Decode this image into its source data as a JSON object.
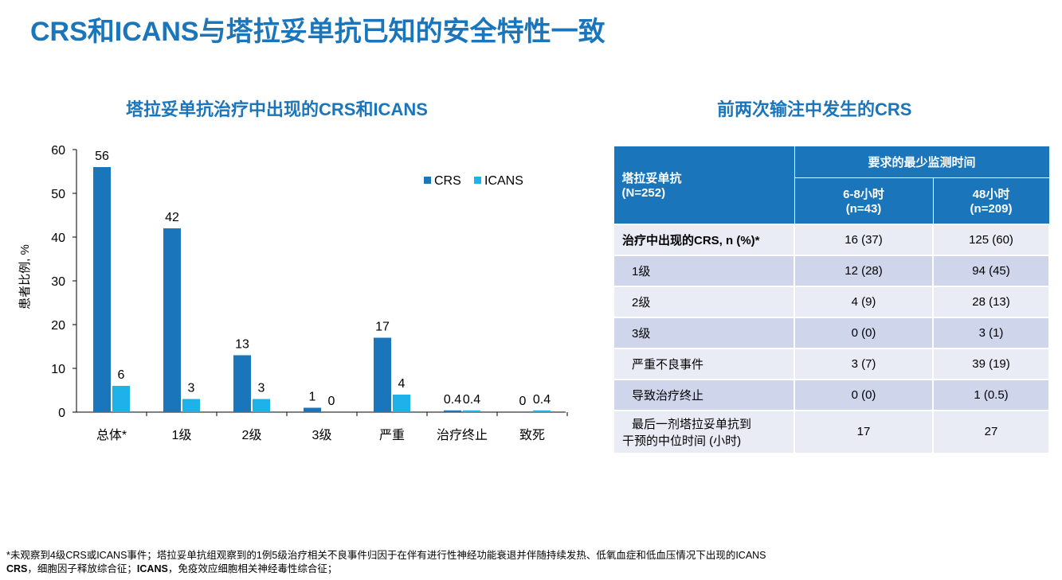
{
  "title": "CRS和ICANS与塔拉妥单抗已知的安全特性一致",
  "chart_subtitle": "塔拉妥单抗治疗中出现的CRS和ICANS",
  "table_subtitle": "前两次输注中发生的CRS",
  "colors": {
    "accent": "#1a75bb",
    "crs": "#1a75bb",
    "icans": "#1fb1ea",
    "row_light": "#e9ebf5",
    "row_dark": "#cfd5ea"
  },
  "chart_data": {
    "type": "bar",
    "title": "塔拉妥单抗治疗中出现的CRS和ICANS",
    "xlabel": "",
    "ylabel": "患者比例, %",
    "ylim": [
      0,
      60
    ],
    "yticks": [
      0,
      10,
      20,
      30,
      40,
      50,
      60
    ],
    "legend_position": "top-right",
    "categories": [
      "总体*",
      "1级",
      "2级",
      "3级",
      "严重",
      "治疗终止",
      "致死"
    ],
    "series": [
      {
        "name": "CRS",
        "values": [
          56,
          42,
          13,
          1,
          17,
          0.4,
          0
        ],
        "labels": [
          "56",
          "42",
          "13",
          "1",
          "17",
          "0.4",
          "0"
        ]
      },
      {
        "name": "ICANS",
        "values": [
          6,
          3,
          3,
          0,
          4,
          0.4,
          0.4
        ],
        "labels": [
          "6",
          "3",
          "3",
          "0",
          "4",
          "0.4",
          "0.4"
        ]
      }
    ]
  },
  "table": {
    "corner_line1": "塔拉妥单抗",
    "corner_line2": "(N=252)",
    "group_header": "要求的最少监测时间",
    "col1_line1": "6-8小时",
    "col1_line2": "(n=43)",
    "col2_line1": "48小时",
    "col2_line2": "(n=209)",
    "rows": [
      {
        "label": "治疗中出现的CRS, n (%)*",
        "c1": "16 (37)",
        "c2": "125 (60)"
      },
      {
        "label": "1级",
        "c1": "12 (28)",
        "c2": "94 (45)"
      },
      {
        "label": "2级",
        "c1": "4 (9)",
        "c2": "28 (13)"
      },
      {
        "label": "3级",
        "c1": "0 (0)",
        "c2": "3 (1)"
      },
      {
        "label": "严重不良事件",
        "c1": "3 (7)",
        "c2": "39 (19)"
      },
      {
        "label": "导致治疗终止",
        "c1": "0 (0)",
        "c2": "1 (0.5)"
      }
    ],
    "last_row": {
      "label_line1": "最后一剂塔拉妥单抗到",
      "label_line2": "干预的中位时间 (小时)",
      "c1": "17",
      "c2": "27"
    }
  },
  "footnote": {
    "line1": "*未观察到4级CRS或ICANS事件；塔拉妥单抗组观察到的1例5级治疗相关不良事件归因于在伴有进行性神经功能衰退并伴随持续发热、低氧血症和低血压情况下出现的ICANS",
    "line2_term1": "CRS",
    "line2_def1": "，细胞因子释放综合征；",
    "line2_term2": "ICANS",
    "line2_def2": "，免疫效应细胞相关神经毒性综合征；"
  }
}
